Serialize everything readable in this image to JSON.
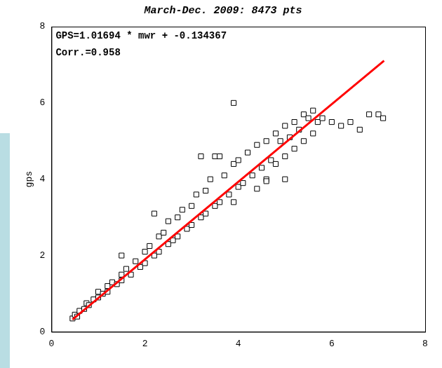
{
  "chart_data": {
    "type": "scatter",
    "title": "March-Dec. 2009: 8473 pts",
    "y_label": "gps",
    "annotations": [
      "GPS=1.01694 * mwr + -0.134367",
      "Corr.=0.958"
    ],
    "xlim": [
      0,
      8
    ],
    "ylim": [
      0,
      8
    ],
    "xticks": [
      0,
      2,
      4,
      6,
      8
    ],
    "yticks": [
      0,
      2,
      4,
      6,
      8
    ],
    "grid": false,
    "series": [
      {
        "type": "scatter",
        "color": "#000000",
        "marker": "square",
        "x": [
          0.45,
          0.5,
          0.55,
          0.6,
          0.7,
          0.75,
          0.8,
          0.9,
          1.0,
          1.0,
          1.1,
          1.2,
          1.2,
          1.3,
          1.4,
          1.5,
          1.5,
          1.6,
          1.7,
          1.8,
          1.9,
          2.0,
          2.0,
          2.1,
          2.2,
          2.3,
          2.3,
          2.4,
          2.5,
          2.5,
          2.6,
          2.7,
          2.7,
          2.8,
          2.9,
          3.0,
          3.0,
          3.1,
          3.2,
          3.3,
          3.3,
          3.4,
          3.5,
          3.5,
          3.6,
          3.6,
          3.7,
          3.8,
          3.9,
          4.0,
          4.0,
          4.1,
          4.2,
          4.3,
          4.4,
          4.4,
          4.5,
          4.6,
          4.6,
          4.7,
          4.8,
          4.8,
          4.9,
          5.0,
          5.0,
          5.1,
          5.2,
          5.2,
          5.3,
          5.4,
          5.4,
          5.5,
          5.6,
          5.6,
          5.7,
          5.8,
          6.0,
          6.2,
          6.4,
          6.6,
          6.8,
          7.0,
          7.1,
          3.9,
          3.2,
          2.2,
          1.5,
          3.9,
          5.0,
          4.6
        ],
        "values": [
          0.35,
          0.45,
          0.4,
          0.55,
          0.6,
          0.75,
          0.7,
          0.85,
          0.9,
          1.05,
          1.0,
          1.2,
          1.05,
          1.3,
          1.25,
          1.5,
          1.35,
          1.65,
          1.5,
          1.85,
          1.7,
          2.1,
          1.8,
          2.25,
          2.0,
          2.5,
          2.1,
          2.6,
          2.3,
          2.9,
          2.4,
          3.0,
          2.5,
          3.2,
          2.7,
          3.3,
          2.8,
          3.6,
          3.0,
          3.7,
          3.1,
          4.0,
          3.3,
          4.6,
          4.6,
          3.4,
          4.1,
          3.6,
          4.4,
          3.8,
          4.5,
          3.9,
          4.7,
          4.1,
          4.9,
          3.75,
          4.3,
          5.0,
          4.0,
          4.5,
          5.2,
          4.4,
          5.0,
          5.4,
          4.6,
          5.1,
          5.5,
          4.8,
          5.3,
          5.7,
          5.0,
          5.6,
          5.8,
          5.2,
          5.5,
          5.6,
          5.5,
          5.4,
          5.5,
          5.3,
          5.7,
          5.7,
          5.6,
          6.0,
          4.6,
          3.1,
          2.0,
          3.4,
          4.0,
          3.95
        ]
      },
      {
        "type": "line",
        "color": "#ff0000",
        "x": [
          0.45,
          7.12
        ],
        "values": [
          0.323,
          7.106
        ]
      }
    ]
  }
}
